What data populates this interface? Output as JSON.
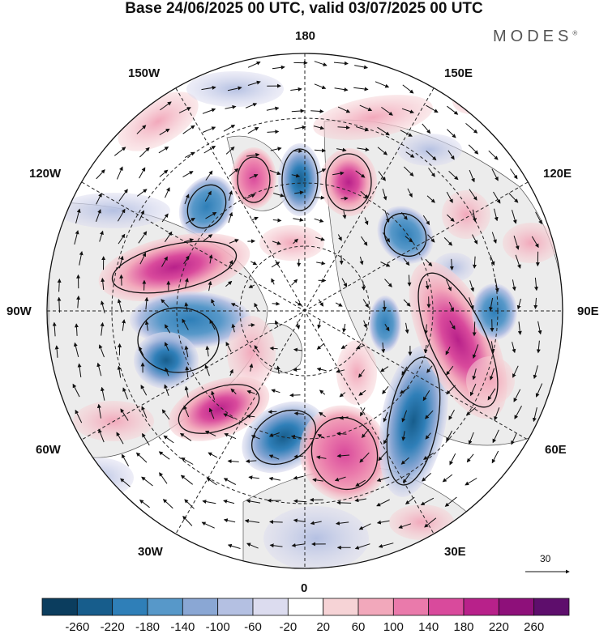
{
  "title": "Base 24/06/2025 00 UTC, valid 03/07/2025 00 UTC",
  "logo": "MODES",
  "logo_mark": "®",
  "meridian_labels": {
    "top": "180",
    "bottom": "0",
    "left": "90W",
    "right": "90E",
    "upper_left_1": "150W",
    "upper_left_2": "120W",
    "upper_right_1": "150E",
    "upper_right_2": "120E",
    "lower_left_1": "60W",
    "lower_left_2": "30W",
    "lower_right_1": "60E",
    "lower_right_2": "30E"
  },
  "vector_scale": "30",
  "colorbar": {
    "ticks": [
      "-260",
      "-220",
      "-180",
      "-140",
      "-100",
      "-60",
      "-20",
      "20",
      "60",
      "100",
      "140",
      "180",
      "220",
      "260"
    ],
    "colors": [
      "#0b3d5e",
      "#175d8c",
      "#2f7fb8",
      "#5798c9",
      "#8aa7d4",
      "#b4c0e2",
      "#dcdcef",
      "#ffffff",
      "#f6d3d6",
      "#f2a8bb",
      "#ea7aab",
      "#d94a9c",
      "#b8218a",
      "#8e107a",
      "#5e0e6c"
    ]
  },
  "accent_colors": {
    "land": "#ececec",
    "ocean": "#ffffff",
    "negative": "#2f7fb8",
    "positive": "#d94a9c"
  }
}
